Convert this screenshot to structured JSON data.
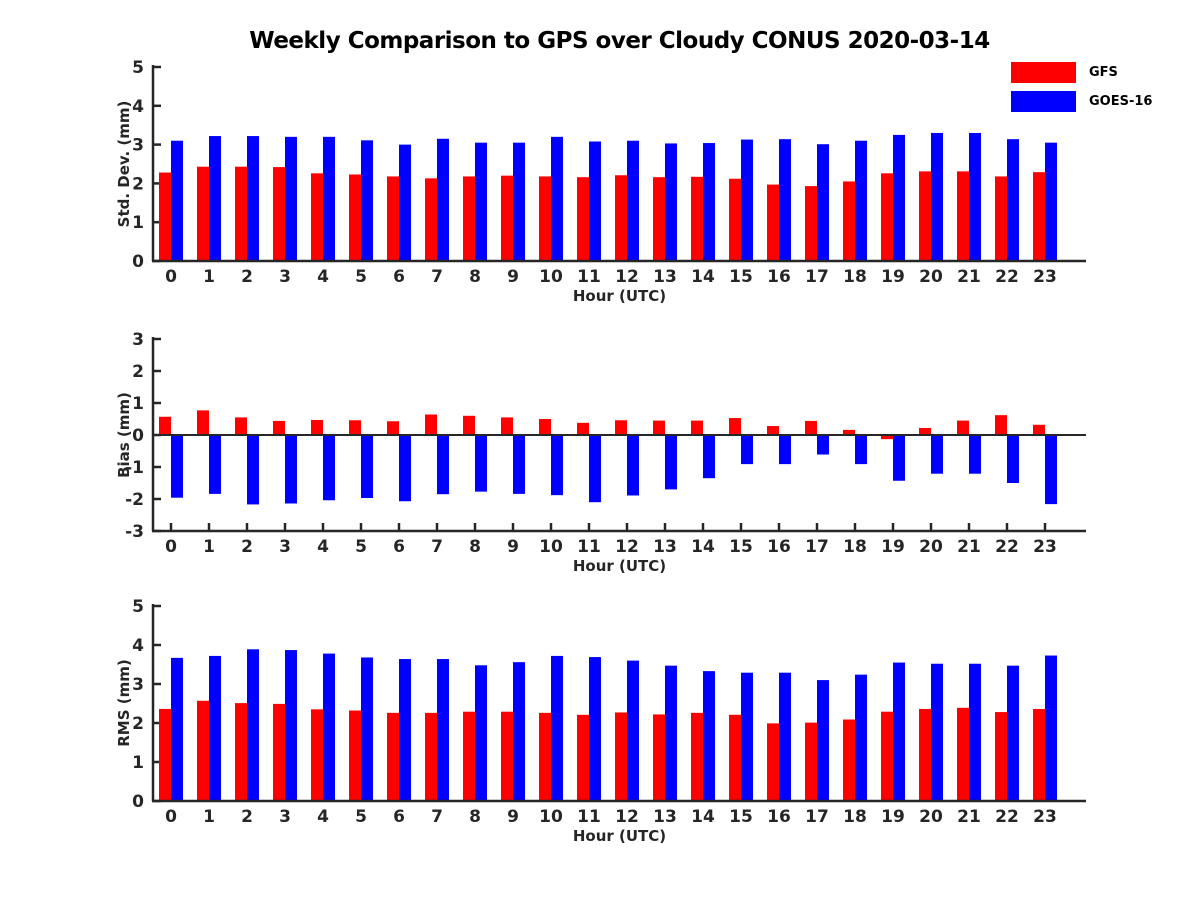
{
  "title": "Weekly Comparison to GPS over Cloudy CONUS 2020-03-14",
  "legend": [
    {
      "label": "GFS",
      "color": "#ff0000"
    },
    {
      "label": "GOES-16",
      "color": "#0000ff"
    }
  ],
  "chart_data": [
    {
      "type": "bar",
      "ylabel": "Std. Dev. (mm)",
      "xlabel": "Hour (UTC)",
      "categories": [
        0,
        1,
        2,
        3,
        4,
        5,
        6,
        7,
        8,
        9,
        10,
        11,
        12,
        13,
        14,
        15,
        16,
        17,
        18,
        19,
        20,
        21,
        22,
        23
      ],
      "ylim": [
        0,
        5
      ],
      "yticks": [
        0,
        1,
        2,
        3,
        4,
        5
      ],
      "grid": false,
      "legend_position": "top-right",
      "series": [
        {
          "name": "GFS",
          "color": "#ff0000",
          "values": [
            2.28,
            2.43,
            2.43,
            2.42,
            2.26,
            2.23,
            2.18,
            2.13,
            2.18,
            2.2,
            2.18,
            2.16,
            2.21,
            2.16,
            2.17,
            2.12,
            1.97,
            1.93,
            2.05,
            2.26,
            2.31,
            2.31,
            2.18,
            2.29
          ]
        },
        {
          "name": "GOES-16",
          "color": "#0000ff",
          "values": [
            3.1,
            3.22,
            3.22,
            3.2,
            3.2,
            3.11,
            3.0,
            3.15,
            3.05,
            3.05,
            3.2,
            3.08,
            3.1,
            3.03,
            3.04,
            3.13,
            3.14,
            3.01,
            3.1,
            3.25,
            3.3,
            3.3,
            3.14,
            3.05
          ]
        }
      ]
    },
    {
      "type": "bar",
      "ylabel": "Bias (mm)",
      "xlabel": "Hour (UTC)",
      "categories": [
        0,
        1,
        2,
        3,
        4,
        5,
        6,
        7,
        8,
        9,
        10,
        11,
        12,
        13,
        14,
        15,
        16,
        17,
        18,
        19,
        20,
        21,
        22,
        23
      ],
      "ylim": [
        -3,
        3
      ],
      "yticks": [
        -3,
        -2,
        -1,
        0,
        1,
        2,
        3
      ],
      "grid": false,
      "series": [
        {
          "name": "GFS",
          "color": "#ff0000",
          "values": [
            0.57,
            0.77,
            0.55,
            0.44,
            0.47,
            0.46,
            0.43,
            0.64,
            0.6,
            0.55,
            0.5,
            0.38,
            0.46,
            0.45,
            0.45,
            0.53,
            0.28,
            0.44,
            0.16,
            -0.13,
            0.22,
            0.45,
            0.62,
            0.32
          ]
        },
        {
          "name": "GOES-16",
          "color": "#0000ff",
          "values": [
            -1.96,
            -1.84,
            -2.17,
            -2.14,
            -2.04,
            -1.97,
            -2.07,
            -1.85,
            -1.77,
            -1.84,
            -1.88,
            -2.1,
            -1.89,
            -1.7,
            -1.35,
            -0.91,
            -0.91,
            -0.61,
            -0.91,
            -1.43,
            -1.21,
            -1.21,
            -1.5,
            -2.16
          ]
        }
      ]
    },
    {
      "type": "bar",
      "ylabel": "RMS (mm)",
      "xlabel": "Hour (UTC)",
      "categories": [
        0,
        1,
        2,
        3,
        4,
        5,
        6,
        7,
        8,
        9,
        10,
        11,
        12,
        13,
        14,
        15,
        16,
        17,
        18,
        19,
        20,
        21,
        22,
        23
      ],
      "ylim": [
        0,
        5
      ],
      "yticks": [
        0,
        1,
        2,
        3,
        4,
        5
      ],
      "grid": false,
      "series": [
        {
          "name": "GFS",
          "color": "#ff0000",
          "values": [
            2.36,
            2.57,
            2.51,
            2.49,
            2.35,
            2.32,
            2.26,
            2.26,
            2.29,
            2.29,
            2.26,
            2.21,
            2.27,
            2.22,
            2.26,
            2.21,
            1.99,
            2.01,
            2.09,
            2.29,
            2.36,
            2.39,
            2.28,
            2.36
          ]
        },
        {
          "name": "GOES-16",
          "color": "#0000ff",
          "values": [
            3.67,
            3.72,
            3.89,
            3.87,
            3.78,
            3.68,
            3.64,
            3.64,
            3.48,
            3.56,
            3.72,
            3.69,
            3.6,
            3.47,
            3.33,
            3.29,
            3.29,
            3.1,
            3.24,
            3.55,
            3.52,
            3.52,
            3.47,
            3.73
          ]
        }
      ]
    }
  ]
}
